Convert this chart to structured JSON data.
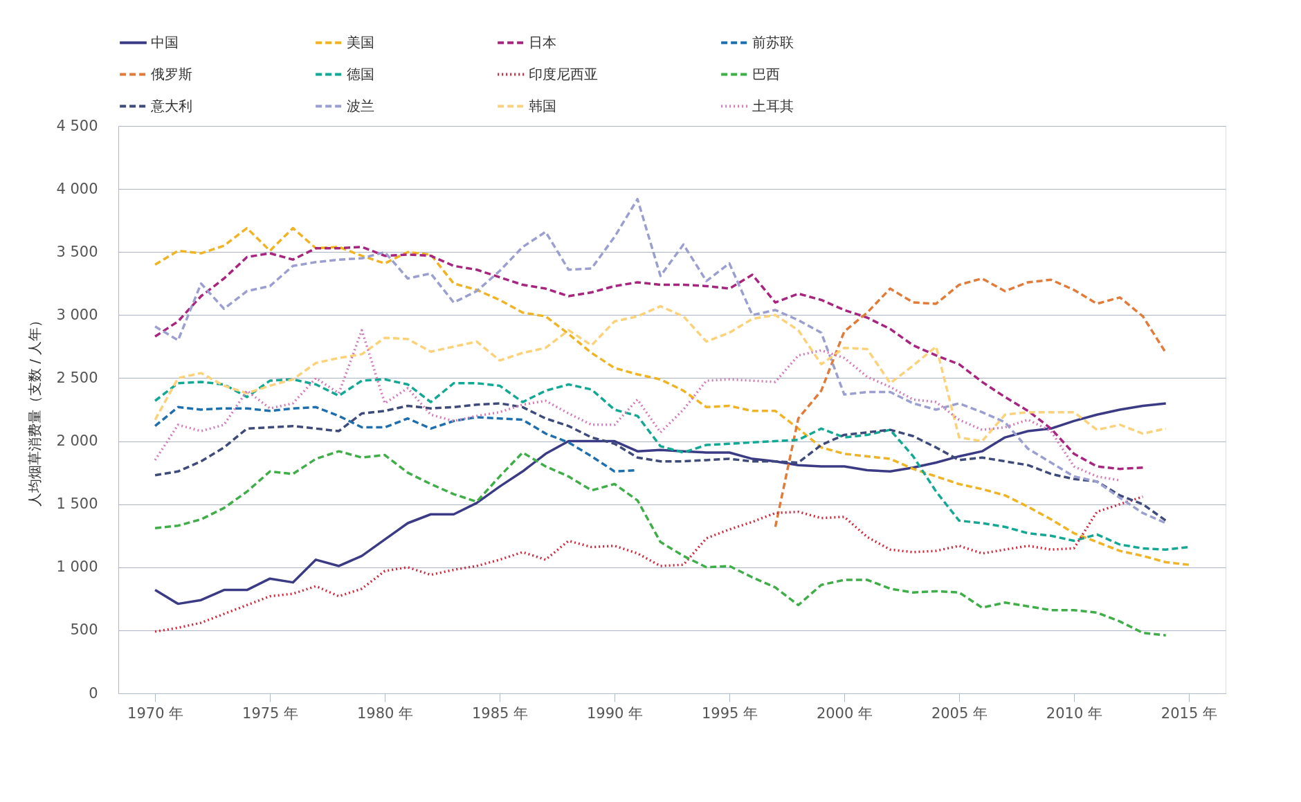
{
  "chart_data": {
    "type": "line",
    "ylabel": "人均烟草消费量（支数 / 人年）",
    "x": [
      1970,
      1971,
      1972,
      1973,
      1974,
      1975,
      1976,
      1977,
      1978,
      1979,
      1980,
      1981,
      1982,
      1983,
      1984,
      1985,
      1986,
      1987,
      1988,
      1989,
      1990,
      1991,
      1992,
      1993,
      1994,
      1995,
      1996,
      1997,
      1998,
      1999,
      2000,
      2001,
      2002,
      2003,
      2004,
      2005,
      2006,
      2007,
      2008,
      2009,
      2010,
      2011,
      2012,
      2013,
      2014,
      2015
    ],
    "xlim": [
      1968.4,
      2016.6
    ],
    "xticks": [
      {
        "value": 1970,
        "label": "1970 年"
      },
      {
        "value": 1975,
        "label": "1975 年"
      },
      {
        "value": 1980,
        "label": "1980 年"
      },
      {
        "value": 1985,
        "label": "1985 年"
      },
      {
        "value": 1990,
        "label": "1990 年"
      },
      {
        "value": 1995,
        "label": "1995 年"
      },
      {
        "value": 2000,
        "label": "2000 年"
      },
      {
        "value": 2005,
        "label": "2005 年"
      },
      {
        "value": 2010,
        "label": "2010 年"
      },
      {
        "value": 2015,
        "label": "2015 年"
      }
    ],
    "ylim": [
      0,
      4500
    ],
    "yticks": [
      0,
      500,
      {
        "value": 1000,
        "label": "1 000"
      },
      {
        "value": 1500,
        "label": "1 500"
      },
      {
        "value": 2000,
        "label": "2 000"
      },
      {
        "value": 2500,
        "label": "2 500"
      },
      {
        "value": 3000,
        "label": "3 000"
      },
      {
        "value": 3500,
        "label": "3 500"
      },
      {
        "value": 4000,
        "label": "4 000"
      },
      {
        "value": 4500,
        "label": "4 500"
      }
    ],
    "grid": "y",
    "legend": "top",
    "series": [
      {
        "name": "中国",
        "color": "#3b3a85",
        "line_style": "solid",
        "values": [
          820,
          710,
          740,
          820,
          820,
          910,
          880,
          1060,
          1010,
          1090,
          1220,
          1350,
          1420,
          1420,
          1510,
          1640,
          1760,
          1900,
          2000,
          2000,
          2000,
          1920,
          1930,
          1920,
          1910,
          1910,
          1860,
          1840,
          1810,
          1800,
          1800,
          1770,
          1760,
          1790,
          1830,
          1880,
          1920,
          2030,
          2080,
          2100,
          2160,
          2210,
          2250,
          2280,
          2300,
          null
        ]
      },
      {
        "name": "美国",
        "color": "#f0b323",
        "line_style": "dashed",
        "values": [
          3400,
          3510,
          3490,
          3550,
          3690,
          3510,
          3690,
          3530,
          3540,
          3470,
          3410,
          3500,
          3480,
          3250,
          3200,
          3120,
          3020,
          2990,
          2850,
          2700,
          2580,
          2530,
          2490,
          2400,
          2270,
          2280,
          2240,
          2240,
          2100,
          1950,
          1900,
          1880,
          1860,
          1780,
          1720,
          1660,
          1620,
          1570,
          1480,
          1380,
          1270,
          1200,
          1130,
          1090,
          1040,
          1020
        ]
      },
      {
        "name": "日本",
        "color": "#a8257f",
        "line_style": "dashed",
        "values": [
          2830,
          2950,
          3150,
          3290,
          3460,
          3490,
          3440,
          3530,
          3530,
          3540,
          3470,
          3480,
          3470,
          3390,
          3360,
          3300,
          3240,
          3210,
          3150,
          3180,
          3230,
          3260,
          3240,
          3240,
          3230,
          3210,
          3320,
          3100,
          3170,
          3120,
          3040,
          2980,
          2890,
          2760,
          2680,
          2610,
          2470,
          2350,
          2240,
          2100,
          1900,
          1800,
          1780,
          1790,
          null,
          null
        ]
      },
      {
        "name": "前苏联",
        "color": "#1f6fae",
        "line_style": "dashed",
        "values": [
          2120,
          2270,
          2250,
          2260,
          2260,
          2240,
          2260,
          2270,
          2200,
          2110,
          2110,
          2180,
          2100,
          2160,
          2190,
          2180,
          2170,
          2060,
          1990,
          1880,
          1760,
          1770,
          null,
          null,
          null,
          null,
          null,
          null,
          null,
          null,
          null,
          null,
          null,
          null,
          null,
          null,
          null,
          null,
          null,
          null,
          null,
          null,
          null,
          null,
          null,
          null
        ]
      },
      {
        "name": "俄罗斯",
        "color": "#e07b39",
        "line_style": "dashed",
        "values": [
          null,
          null,
          null,
          null,
          null,
          null,
          null,
          null,
          null,
          null,
          null,
          null,
          null,
          null,
          null,
          null,
          null,
          null,
          null,
          null,
          null,
          null,
          null,
          null,
          null,
          null,
          null,
          1320,
          2180,
          2400,
          2870,
          3020,
          3210,
          3100,
          3090,
          3240,
          3290,
          3190,
          3260,
          3280,
          3200,
          3090,
          3140,
          2990,
          2700,
          null
        ]
      },
      {
        "name": "德国",
        "color": "#13a894",
        "line_style": "dashed",
        "values": [
          2320,
          2460,
          2470,
          2450,
          2350,
          2480,
          2490,
          2450,
          2360,
          2480,
          2490,
          2450,
          2310,
          2460,
          2460,
          2440,
          2310,
          2400,
          2450,
          2410,
          2250,
          2200,
          1960,
          1910,
          1970,
          1980,
          1990,
          2000,
          2010,
          2100,
          2030,
          2050,
          2090,
          1880,
          1600,
          1370,
          1350,
          1320,
          1270,
          1250,
          1210,
          1260,
          1180,
          1150,
          1140,
          1160
        ]
      },
      {
        "name": "印度尼西亚",
        "color": "#d0263a",
        "line_style": "dotted",
        "values": [
          490,
          520,
          560,
          630,
          700,
          770,
          790,
          850,
          770,
          830,
          970,
          1000,
          940,
          980,
          1010,
          1060,
          1120,
          1060,
          1210,
          1160,
          1170,
          1110,
          1010,
          1020,
          1230,
          1300,
          1360,
          1430,
          1440,
          1390,
          1400,
          1240,
          1140,
          1120,
          1130,
          1170,
          1110,
          1140,
          1170,
          1140,
          1150,
          1440,
          1500,
          1560,
          null,
          null
        ]
      },
      {
        "name": "巴西",
        "color": "#3fae49",
        "line_style": "dashed",
        "values": [
          1310,
          1330,
          1380,
          1470,
          1600,
          1760,
          1740,
          1860,
          1920,
          1870,
          1890,
          1750,
          1660,
          1580,
          1520,
          1720,
          1910,
          1800,
          1720,
          1610,
          1660,
          1530,
          1200,
          1090,
          1000,
          1010,
          920,
          840,
          700,
          860,
          900,
          900,
          830,
          800,
          810,
          800,
          680,
          720,
          690,
          660,
          660,
          640,
          570,
          480,
          460,
          null
        ]
      },
      {
        "name": "意大利",
        "color": "#3d4a7a",
        "line_style": "dashed",
        "values": [
          1730,
          1760,
          1840,
          1950,
          2100,
          2110,
          2120,
          2100,
          2080,
          2220,
          2240,
          2280,
          2260,
          2270,
          2290,
          2300,
          2270,
          2180,
          2120,
          2030,
          1980,
          1870,
          1840,
          1840,
          1850,
          1860,
          1840,
          1840,
          1830,
          1970,
          2050,
          2070,
          2090,
          2040,
          1950,
          1850,
          1870,
          1840,
          1810,
          1740,
          1700,
          1680,
          1570,
          1500,
          1370,
          null
        ]
      },
      {
        "name": "波兰",
        "color": "#9b9fd0",
        "line_style": "dashed",
        "values": [
          2910,
          2800,
          3250,
          3050,
          3190,
          3230,
          3390,
          3420,
          3440,
          3450,
          3500,
          3290,
          3330,
          3100,
          3190,
          3350,
          3540,
          3660,
          3360,
          3370,
          3620,
          3920,
          3310,
          3560,
          3270,
          3410,
          3000,
          3040,
          2960,
          2860,
          2370,
          2390,
          2390,
          2300,
          2250,
          2300,
          2230,
          2150,
          1940,
          1830,
          1720,
          1680,
          1550,
          1430,
          1350,
          null
        ]
      },
      {
        "name": "韩国",
        "color": "#fbd27a",
        "line_style": "dashed",
        "values": [
          2170,
          2500,
          2540,
          2440,
          2380,
          2440,
          2490,
          2620,
          2660,
          2690,
          2820,
          2810,
          2710,
          2750,
          2790,
          2640,
          2700,
          2740,
          2880,
          2760,
          2950,
          2990,
          3070,
          2990,
          2790,
          2860,
          2970,
          3000,
          2880,
          2610,
          2740,
          2730,
          2460,
          2600,
          2750,
          2030,
          2000,
          2210,
          2230,
          2230,
          2230,
          2090,
          2130,
          2060,
          2100,
          null
        ]
      },
      {
        "name": "土耳其",
        "color": "#d27bb8",
        "line_style": "dotted",
        "values": [
          1850,
          2130,
          2080,
          2130,
          2400,
          2260,
          2300,
          2500,
          2380,
          2880,
          2300,
          2420,
          2210,
          2160,
          2200,
          2230,
          2290,
          2320,
          2220,
          2130,
          2130,
          2330,
          2070,
          2250,
          2480,
          2490,
          2480,
          2470,
          2680,
          2720,
          2660,
          2510,
          2430,
          2330,
          2310,
          2170,
          2090,
          2110,
          2170,
          2080,
          1800,
          1720,
          1690,
          null,
          null,
          null
        ]
      }
    ]
  }
}
